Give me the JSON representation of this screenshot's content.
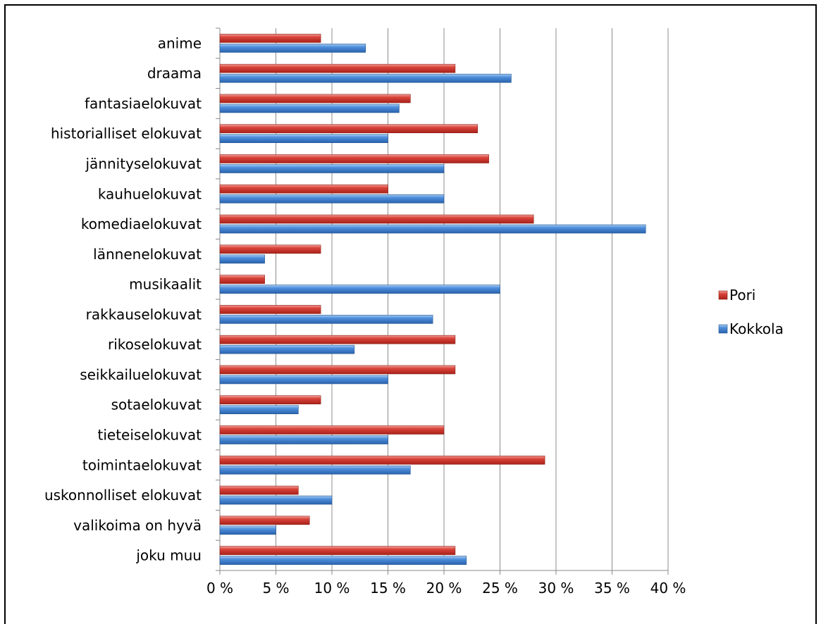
{
  "chart_data": {
    "type": "bar",
    "orientation": "horizontal",
    "categories": [
      "anime",
      "draama",
      "fantasiaelokuvat",
      "historialliset elokuvat",
      "jännityselokuvat",
      "kauhuelokuvat",
      "komediaelokuvat",
      "lännenelokuvat",
      "musikaalit",
      "rakkauselokuvat",
      "rikoselokuvat",
      "seikkailuelokuvat",
      "sotaelokuvat",
      "tieteiselokuvat",
      "toimintaelokuvat",
      "uskonnolliset elokuvat",
      "valikoima on hyvä",
      "joku muu"
    ],
    "series": [
      {
        "name": "Pori",
        "color": "#c0392b",
        "values": [
          9,
          21,
          17,
          23,
          24,
          15,
          28,
          9,
          4,
          9,
          21,
          21,
          9,
          20,
          29,
          7,
          8,
          21
        ]
      },
      {
        "name": "Kokkola",
        "color": "#3a78c9",
        "values": [
          13,
          26,
          16,
          15,
          20,
          20,
          38,
          4,
          25,
          19,
          12,
          15,
          7,
          15,
          17,
          10,
          5,
          22
        ]
      }
    ],
    "xlim": [
      0,
      40
    ],
    "xticks": [
      "0 %",
      "5 %",
      "10 %",
      "15 %",
      "20 %",
      "25 %",
      "30 %",
      "35 %",
      "40 %"
    ],
    "grid": true,
    "legend_position": "right",
    "title": "",
    "xlabel": "",
    "ylabel": ""
  }
}
